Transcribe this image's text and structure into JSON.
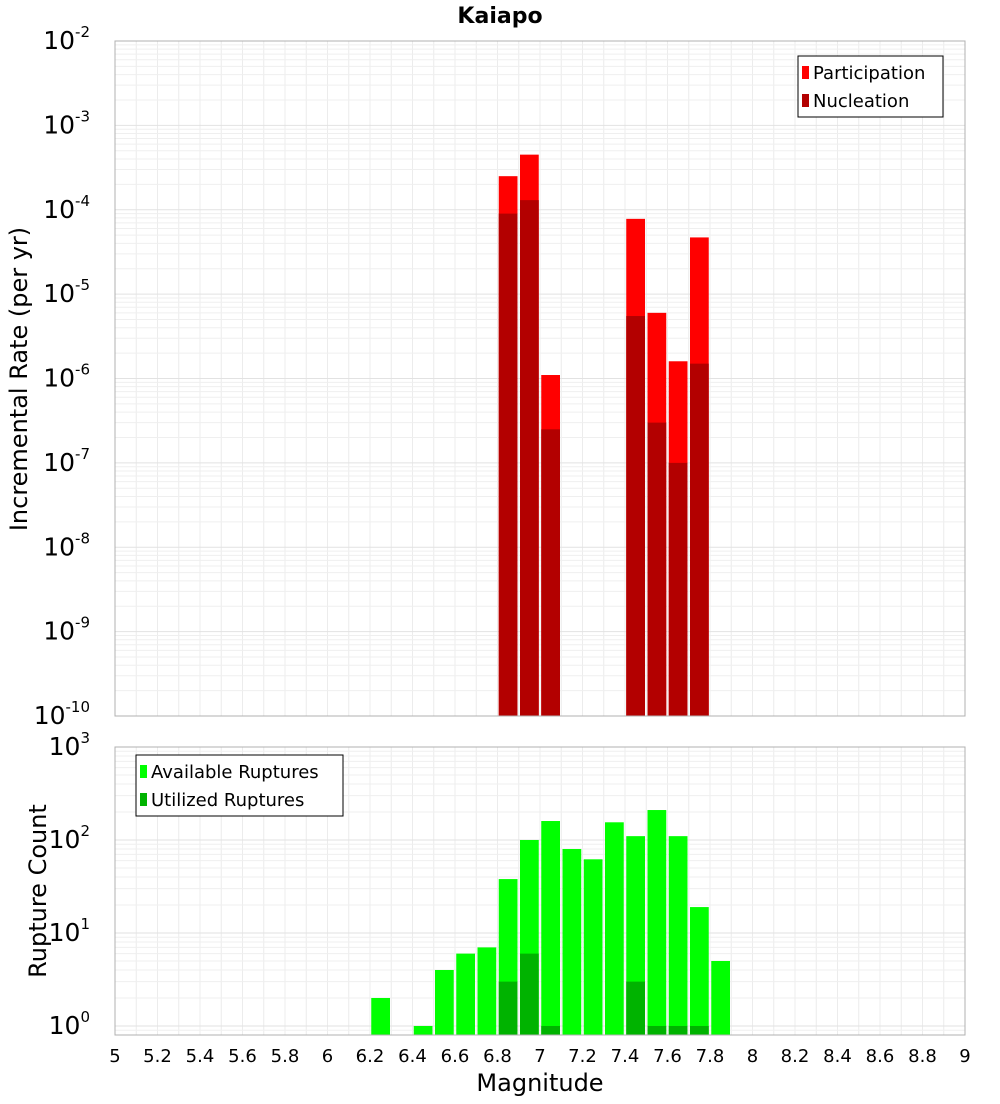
{
  "chart_data": [
    {
      "type": "bar",
      "title": "Kaiapo",
      "xlabel": "",
      "ylabel": "Incremental Rate (per yr)",
      "yscale": "log",
      "xlim": [
        5,
        9
      ],
      "ylim": [
        1e-10,
        0.01
      ],
      "grid": true,
      "legend_position": "top-right",
      "series": [
        {
          "name": "Participation",
          "color": "#ff0000",
          "x": [
            6.85,
            6.95,
            7.05,
            7.45,
            7.55,
            7.65,
            7.75
          ],
          "values": [
            0.00025,
            0.00045,
            1.1e-06,
            7.8e-05,
            6e-06,
            1.6e-06,
            4.7e-05
          ]
        },
        {
          "name": "Nucleation",
          "color": "#b30000",
          "x": [
            6.85,
            6.95,
            7.05,
            7.45,
            7.55,
            7.65,
            7.75
          ],
          "values": [
            9e-05,
            0.00013,
            2.5e-07,
            5.5e-06,
            3e-07,
            1e-07,
            1.5e-06
          ]
        }
      ]
    },
    {
      "type": "bar",
      "title": "",
      "xlabel": "Magnitude",
      "ylabel": "Rupture Count",
      "yscale": "log",
      "xlim": [
        5,
        9
      ],
      "ylim": [
        0.8,
        1000
      ],
      "grid": true,
      "legend_position": "top-left",
      "xticks": [
        "5",
        "5.2",
        "5.4",
        "5.6",
        "5.8",
        "6",
        "6.2",
        "6.4",
        "6.6",
        "6.8",
        "7",
        "7.2",
        "7.4",
        "7.6",
        "7.8",
        "8",
        "8.2",
        "8.4",
        "8.6",
        "8.8",
        "9"
      ],
      "series": [
        {
          "name": "Available Ruptures",
          "color": "#00ff00",
          "x": [
            6.25,
            6.45,
            6.55,
            6.65,
            6.75,
            6.85,
            6.95,
            7.05,
            7.15,
            7.25,
            7.35,
            7.45,
            7.55,
            7.65,
            7.75,
            7.85
          ],
          "values": [
            2,
            1,
            4,
            6,
            7,
            38,
            100,
            160,
            80,
            62,
            155,
            110,
            210,
            110,
            19,
            5
          ]
        },
        {
          "name": "Utilized Ruptures",
          "color": "#00b300",
          "x": [
            6.85,
            6.95,
            7.05,
            7.45,
            7.55,
            7.65,
            7.75
          ],
          "values": [
            3,
            6,
            1,
            3,
            1,
            1,
            1
          ]
        }
      ]
    }
  ]
}
